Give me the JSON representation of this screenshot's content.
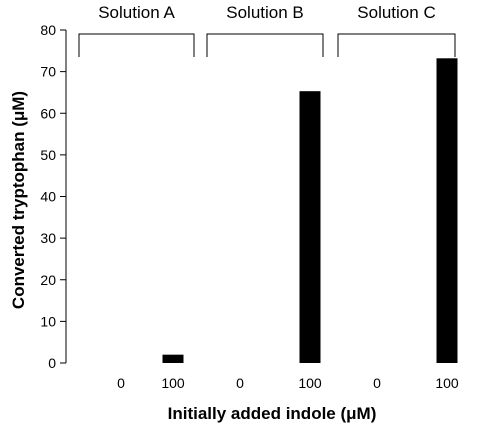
{
  "chart_data": {
    "type": "bar",
    "xlabel": "Initially  added indole (μM)",
    "ylabel": "Converted tryptophan (μM)",
    "ylim": [
      0,
      80
    ],
    "yticks": [
      0,
      10,
      20,
      30,
      40,
      50,
      60,
      70,
      80
    ],
    "categories": [
      "0",
      "100",
      "0",
      "100",
      "0",
      "100"
    ],
    "groups": [
      {
        "label": "Solution A",
        "categories": [
          "0",
          "100"
        ],
        "values": [
          0,
          2
        ]
      },
      {
        "label": "Solution B",
        "categories": [
          "0",
          "100"
        ],
        "values": [
          0,
          65.3
        ]
      },
      {
        "label": "Solution C",
        "categories": [
          "0",
          "100"
        ],
        "values": [
          0,
          73.2
        ]
      }
    ],
    "values": [
      0,
      2,
      0,
      65.3,
      0,
      73.2
    ],
    "bar_color": "#000000",
    "grid": false,
    "legend": "none"
  }
}
